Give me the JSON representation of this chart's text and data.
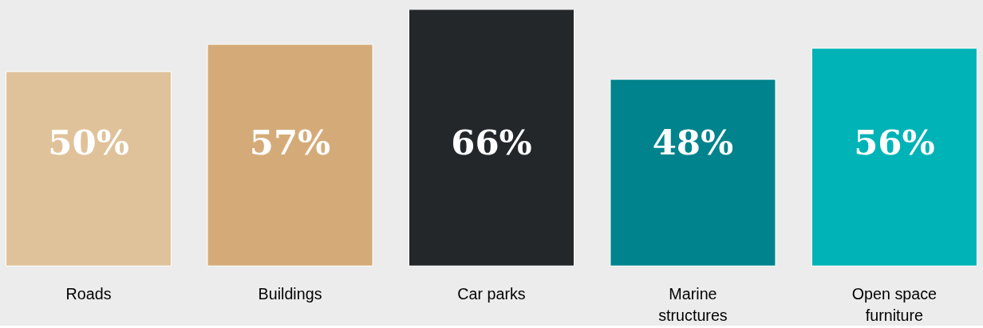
{
  "chart_data": {
    "type": "bar",
    "categories": [
      "Roads",
      "Buildings",
      "Car parks",
      "Marine structures",
      "Open space furniture"
    ],
    "values": [
      50,
      57,
      66,
      48,
      56
    ],
    "colors": [
      "#e0c29a",
      "#d4ab78",
      "#23272a",
      "#00838c",
      "#00b3b6"
    ],
    "value_labels": [
      "50%",
      "57%",
      "66%",
      "48%",
      "56%"
    ],
    "grid": false
  }
}
